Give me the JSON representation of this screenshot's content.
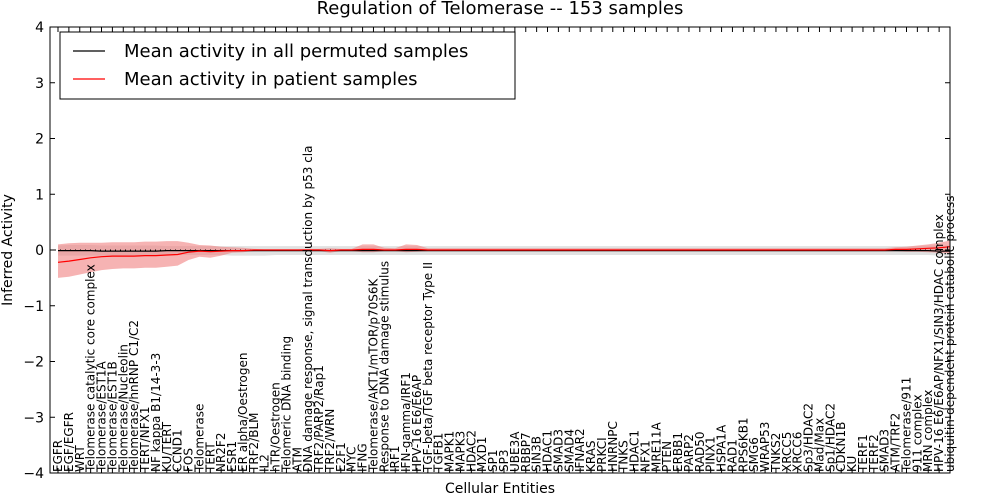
{
  "chart_data": {
    "type": "line",
    "title": "Regulation of Telomerase -- 153 samples",
    "xlabel": "Cellular Entities",
    "ylabel": "Inferred Activity",
    "ylim": [
      -4,
      4
    ],
    "yticks": [
      -4,
      -3,
      -2,
      -1,
      0,
      1,
      2,
      3,
      4
    ],
    "grid": false,
    "legend_position": "top-left",
    "colors": {
      "permuted": "#000000",
      "patient": "#ff0000",
      "patient_band": "#f08080",
      "permuted_band": "#c8c8c8"
    },
    "categories": [
      "EGFR",
      "EGF/EGFR",
      "WRT",
      "Telomerase catalytic core complex",
      "Telomerase/EST1A",
      "Telomerase/EST1B",
      "Telomerase/Nucleolin",
      "Telomerase/hnRNP C1/C2",
      "TERT/NFX1",
      "NF kappa B1/14-3-3",
      "KU/TERT",
      "CCND1",
      "FOS",
      "Telomerase",
      "TERT",
      "NR2F2",
      "ESR1",
      "ER alpha/Oestrogen",
      "TRF2/BLM",
      "IL2",
      "hTR/Oestrogen",
      "Telomeric DNA binding",
      "ATM",
      "DNA damage response, signal transduction by p53 cla",
      "TRF2/PARP2/Rap1",
      "TRF2/WRN",
      "E2F1",
      "MYC",
      "IFNG",
      "Telomerase/AKT1/mTOR/p70S6K",
      "Response to DNA damage stimulus",
      "IRF1",
      "IFN-gamma/IRF1",
      "HPV-16 E6/E6AP",
      "TGF-beta/TGF beta receptor Type II",
      "TGFB1",
      "MAPK1",
      "MAPK3",
      "HDAC2",
      "MXD1",
      "SP1",
      "SP3",
      "UBE3A",
      "RBBP7",
      "SIN3B",
      "HDAC1",
      "SMAD3",
      "SMAD4",
      "IFNAR2",
      "KRAS",
      "PRKCI",
      "HNRNPC",
      "TNKS",
      "HDAC1",
      "NFX1",
      "MRE11A",
      "PTEN",
      "ERBB1",
      "PARP2",
      "RAD50",
      "PINX1",
      "HSPA1A",
      "RAD1",
      "RPS6KB1",
      "SMG6",
      "WRAP53",
      "TNKS2",
      "XRCC5",
      "XRCC6",
      "Sp3/HDAC2",
      "Mad/Max",
      "Sp1/HDAC2",
      "CDKN1B",
      "KU",
      "TERF1",
      "TERF2",
      "SMAD3",
      "ATM/TRF2",
      "Telomerase/911",
      "911 complex",
      "MRN complex",
      "HPV-16 E6/E6AP/NFX1/SIN3/HDAC complex",
      "ubiquitin-dependent protein catabolic process"
    ],
    "series": [
      {
        "name": "Mean activity in all permuted samples",
        "values": [
          -0.01,
          -0.01,
          -0.01,
          -0.01,
          -0.02,
          -0.02,
          -0.02,
          -0.02,
          -0.02,
          -0.02,
          -0.01,
          -0.01,
          -0.01,
          -0.01,
          -0.01,
          -0.01,
          -0.01,
          -0.01,
          -0.01,
          -0.01,
          -0.01,
          -0.01,
          -0.01,
          -0.01,
          -0.01,
          -0.01,
          -0.01,
          -0.01,
          -0.01,
          -0.01,
          -0.01,
          -0.01,
          -0.01,
          -0.01,
          -0.01,
          -0.01,
          -0.01,
          -0.01,
          -0.01,
          -0.01,
          -0.01,
          -0.01,
          -0.01,
          -0.01,
          -0.01,
          -0.01,
          -0.01,
          -0.01,
          -0.01,
          -0.01,
          -0.01,
          -0.01,
          -0.01,
          -0.01,
          -0.01,
          -0.01,
          -0.01,
          -0.01,
          -0.01,
          -0.01,
          -0.01,
          -0.01,
          -0.01,
          -0.01,
          -0.01,
          -0.01,
          -0.01,
          -0.01,
          -0.01,
          -0.01,
          -0.01,
          -0.01,
          -0.01,
          -0.01,
          -0.01,
          -0.01,
          -0.01,
          -0.01,
          -0.01,
          -0.01,
          -0.01,
          -0.02,
          -0.02
        ]
      },
      {
        "name": "Mean activity in patient samples",
        "values": [
          -0.22,
          -0.2,
          -0.17,
          -0.14,
          -0.12,
          -0.11,
          -0.11,
          -0.11,
          -0.1,
          -0.1,
          -0.09,
          -0.08,
          -0.04,
          -0.02,
          -0.03,
          -0.02,
          -0.01,
          -0.01,
          0.0,
          0.0,
          0.0,
          0.0,
          0.0,
          0.0,
          0.0,
          -0.01,
          0.0,
          0.0,
          0.01,
          0.01,
          0.0,
          0.0,
          0.01,
          0.01,
          0.0,
          0.0,
          0.0,
          0.0,
          0.0,
          0.0,
          0.0,
          0.0,
          0.0,
          0.0,
          0.0,
          0.0,
          0.0,
          0.0,
          0.0,
          0.0,
          0.0,
          0.0,
          0.0,
          0.0,
          0.0,
          0.0,
          0.0,
          0.0,
          0.0,
          0.0,
          0.0,
          0.0,
          0.0,
          0.0,
          0.0,
          0.0,
          0.0,
          0.0,
          0.0,
          0.0,
          0.0,
          0.0,
          0.0,
          0.0,
          0.0,
          0.0,
          0.0,
          0.01,
          0.01,
          0.02,
          0.03,
          0.04,
          0.06
        ]
      }
    ],
    "bands": [
      {
        "series": "Mean activity in all permuted samples",
        "lower": [
          -0.1,
          -0.1,
          -0.1,
          -0.1,
          -0.1,
          -0.1,
          -0.1,
          -0.1,
          -0.1,
          -0.1,
          -0.1,
          -0.09,
          -0.09,
          -0.09,
          -0.09,
          -0.09,
          -0.1,
          -0.1,
          -0.1,
          -0.1,
          -0.09,
          -0.09,
          -0.09,
          -0.09,
          -0.09,
          -0.09,
          -0.09,
          -0.09,
          -0.09,
          -0.09,
          -0.09,
          -0.09,
          -0.09,
          -0.09,
          -0.09,
          -0.09,
          -0.09,
          -0.09,
          -0.09,
          -0.09,
          -0.09,
          -0.09,
          -0.09,
          -0.09,
          -0.09,
          -0.09,
          -0.09,
          -0.09,
          -0.09,
          -0.09,
          -0.09,
          -0.09,
          -0.09,
          -0.09,
          -0.09,
          -0.09,
          -0.09,
          -0.09,
          -0.09,
          -0.09,
          -0.09,
          -0.09,
          -0.09,
          -0.09,
          -0.09,
          -0.09,
          -0.09,
          -0.09,
          -0.09,
          -0.09,
          -0.09,
          -0.09,
          -0.09,
          -0.09,
          -0.09,
          -0.09,
          -0.09,
          -0.09,
          -0.09,
          -0.09,
          -0.09,
          -0.1,
          -0.1
        ],
        "upper": [
          0.08,
          0.09,
          0.09,
          0.09,
          0.08,
          0.08,
          0.08,
          0.08,
          0.08,
          0.08,
          0.07,
          0.07,
          0.07,
          0.07,
          0.07,
          0.07,
          0.07,
          0.07,
          0.07,
          0.07,
          0.07,
          0.07,
          0.07,
          0.07,
          0.07,
          0.07,
          0.07,
          0.07,
          0.07,
          0.07,
          0.07,
          0.07,
          0.07,
          0.07,
          0.07,
          0.07,
          0.07,
          0.07,
          0.07,
          0.07,
          0.07,
          0.07,
          0.07,
          0.07,
          0.07,
          0.07,
          0.07,
          0.07,
          0.07,
          0.07,
          0.07,
          0.07,
          0.07,
          0.07,
          0.07,
          0.07,
          0.07,
          0.07,
          0.07,
          0.07,
          0.07,
          0.07,
          0.07,
          0.07,
          0.07,
          0.07,
          0.07,
          0.07,
          0.07,
          0.07,
          0.07,
          0.07,
          0.07,
          0.07,
          0.07,
          0.07,
          0.07,
          0.07,
          0.07,
          0.07,
          0.08,
          0.08,
          0.08
        ]
      },
      {
        "series": "Mean activity in patient samples",
        "lower": [
          -0.5,
          -0.48,
          -0.44,
          -0.4,
          -0.36,
          -0.34,
          -0.33,
          -0.33,
          -0.32,
          -0.32,
          -0.3,
          -0.28,
          -0.18,
          -0.12,
          -0.14,
          -0.1,
          -0.05,
          -0.04,
          -0.02,
          -0.01,
          -0.01,
          -0.01,
          -0.01,
          -0.02,
          -0.02,
          -0.05,
          -0.02,
          -0.02,
          -0.04,
          -0.04,
          -0.02,
          -0.02,
          -0.04,
          -0.03,
          -0.02,
          -0.02,
          -0.02,
          -0.02,
          -0.02,
          -0.02,
          -0.02,
          -0.02,
          -0.02,
          -0.02,
          -0.02,
          -0.02,
          -0.02,
          -0.02,
          -0.02,
          -0.02,
          -0.02,
          -0.02,
          -0.02,
          -0.02,
          -0.02,
          -0.02,
          -0.02,
          -0.02,
          -0.02,
          -0.02,
          -0.02,
          -0.02,
          -0.02,
          -0.02,
          -0.02,
          -0.02,
          -0.02,
          -0.02,
          -0.02,
          -0.02,
          -0.02,
          -0.02,
          -0.02,
          -0.02,
          -0.02,
          -0.02,
          -0.02,
          -0.02,
          -0.03,
          -0.03,
          -0.04,
          -0.05,
          -0.06
        ],
        "upper": [
          0.1,
          0.12,
          0.13,
          0.13,
          0.13,
          0.14,
          0.14,
          0.14,
          0.15,
          0.15,
          0.16,
          0.16,
          0.13,
          0.09,
          0.08,
          0.06,
          0.05,
          0.04,
          0.02,
          0.01,
          0.01,
          0.01,
          0.01,
          0.02,
          0.02,
          0.03,
          0.02,
          0.02,
          0.1,
          0.1,
          0.04,
          0.03,
          0.1,
          0.09,
          0.03,
          0.03,
          0.03,
          0.03,
          0.03,
          0.03,
          0.03,
          0.03,
          0.03,
          0.03,
          0.03,
          0.03,
          0.03,
          0.03,
          0.03,
          0.03,
          0.03,
          0.03,
          0.03,
          0.03,
          0.03,
          0.03,
          0.03,
          0.03,
          0.03,
          0.03,
          0.03,
          0.03,
          0.03,
          0.03,
          0.03,
          0.03,
          0.03,
          0.03,
          0.03,
          0.03,
          0.03,
          0.03,
          0.03,
          0.03,
          0.03,
          0.03,
          0.03,
          0.05,
          0.06,
          0.08,
          0.1,
          0.13,
          0.17
        ]
      }
    ],
    "reference_line": {
      "y": 0,
      "style": "dotted"
    }
  }
}
